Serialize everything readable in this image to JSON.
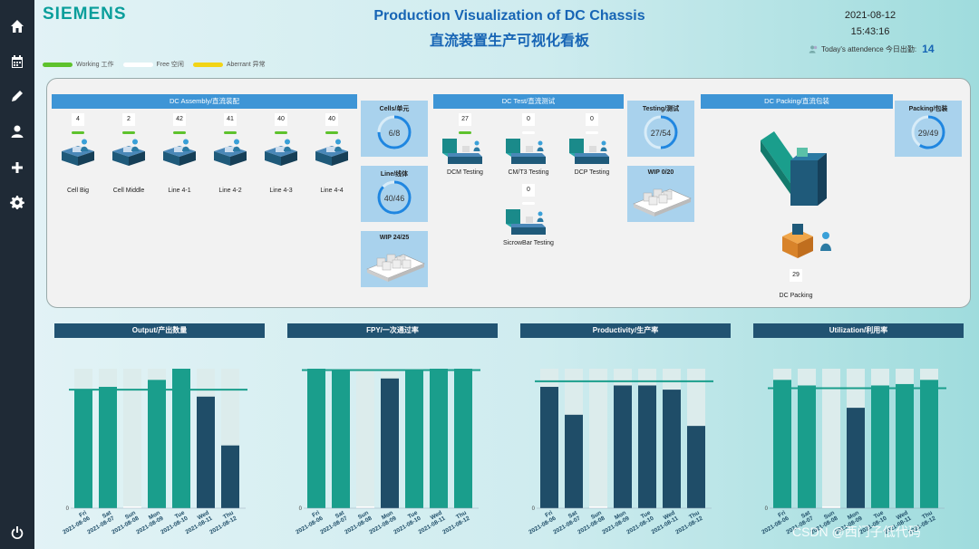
{
  "header": {
    "logo": "SIEMENS",
    "title_en": "Production Visualization of DC Chassis",
    "title_cn": "直流装置生产可视化看板",
    "date": "2021-08-12",
    "time": "15:43:16",
    "attendance_label": "Today's attendence 今日出勤:",
    "attendance_value": "14"
  },
  "legend": [
    {
      "label": "Working 工作",
      "color": "#5ec22d"
    },
    {
      "label": "Free 空闲",
      "color": "#ffffff"
    },
    {
      "label": "Aberrant 异常",
      "color": "#f2d416"
    }
  ],
  "sidebar": [
    "home-icon",
    "calendar-icon",
    "pencil-icon",
    "user-icon",
    "plus-icon",
    "gear-icon",
    "power-icon"
  ],
  "assembly": {
    "title": "DC Assembly/直流装配",
    "stations": [
      {
        "label": "Cell Big",
        "count": "4",
        "status": "#5ec22d"
      },
      {
        "label": "Cell Middle",
        "count": "2",
        "status": "#5ec22d"
      },
      {
        "label": "Line 4-1",
        "count": "42",
        "status": "#5ec22d"
      },
      {
        "label": "Line 4-2",
        "count": "41",
        "status": "#5ec22d"
      },
      {
        "label": "Line 4-3",
        "count": "40",
        "status": "#5ec22d"
      },
      {
        "label": "Line 4-4",
        "count": "40",
        "status": "#5ec22d"
      }
    ],
    "gauges": [
      {
        "label": "Cells/单元",
        "value": "6/8",
        "ratio": 0.75
      },
      {
        "label": "Line/线体",
        "value": "40/46",
        "ratio": 0.87
      }
    ],
    "wip": "WIP 24/25"
  },
  "test": {
    "title": "DC Test/直流测试",
    "stations": [
      {
        "label": "DCM Testing",
        "count": "27",
        "status": "#5ec22d"
      },
      {
        "label": "CM/T3 Testing",
        "count": "0",
        "status": "#ffffff"
      },
      {
        "label": "DCP Testing",
        "count": "0",
        "status": "#ffffff"
      },
      {
        "label": "SicrowBar Testing",
        "count": "0",
        "status": "#ffffff"
      }
    ],
    "gauge": {
      "label": "Testing/测试",
      "value": "27/54",
      "ratio": 0.5
    },
    "wip": "WIP 0/20"
  },
  "packing": {
    "title": "DC Packing/直流包装",
    "station": {
      "label": "DC Packing",
      "count": "29"
    },
    "gauge": {
      "label": "Packing/包装",
      "value": "29/49",
      "ratio": 0.59
    }
  },
  "charts": [
    {
      "title": "Output/产出数量"
    },
    {
      "title": "FPY/一次通过率"
    },
    {
      "title": "Productivity/生产率"
    },
    {
      "title": "Utilization/利用率"
    }
  ],
  "chart_data": [
    {
      "type": "bar",
      "title": "Output/产出数量",
      "categories": [
        "Fri 2021-08-06",
        "Sat 2021-08-07",
        "Sun 2021-08-08",
        "Mon 2021-08-09",
        "Tue 2021-08-10",
        "Wed 2021-08-11",
        "Thu 2021-08-12"
      ],
      "values": [
        85,
        87,
        0,
        92,
        100,
        80,
        45
      ],
      "target": 85,
      "ylabel_tick": "0"
    },
    {
      "type": "bar",
      "title": "FPY/一次通过率",
      "categories": [
        "Fri 2021-08-06",
        "Sat 2021-08-07",
        "Sun 2021-08-08",
        "Mon 2021-08-09",
        "Tue 2021-08-10",
        "Wed 2021-08-11",
        "Thu 2021-08-12"
      ],
      "values": [
        100,
        99,
        0,
        93,
        99,
        100,
        100
      ],
      "target": 99,
      "ylabel_tick": "0"
    },
    {
      "type": "bar",
      "title": "Productivity/生产率",
      "categories": [
        "Fri 2021-08-06",
        "Sat 2021-08-07",
        "Sun 2021-08-08",
        "Mon 2021-08-09",
        "Tue 2021-08-10",
        "Wed 2021-08-11",
        "Thu 2021-08-12"
      ],
      "values": [
        87,
        67,
        0,
        88,
        88,
        85,
        59
      ],
      "target": 91,
      "ylabel_tick": "0"
    },
    {
      "type": "bar",
      "title": "Utilization/利用率",
      "categories": [
        "Fri 2021-08-06",
        "Sat 2021-08-07",
        "Sun 2021-08-08",
        "Mon 2021-08-09",
        "Tue 2021-08-10",
        "Wed 2021-08-11",
        "Thu 2021-08-12"
      ],
      "values": [
        92,
        88,
        0,
        72,
        88,
        89,
        92
      ],
      "target": 86,
      "ylabel_tick": "0"
    }
  ],
  "watermark": "CSDN @西门子低代码"
}
